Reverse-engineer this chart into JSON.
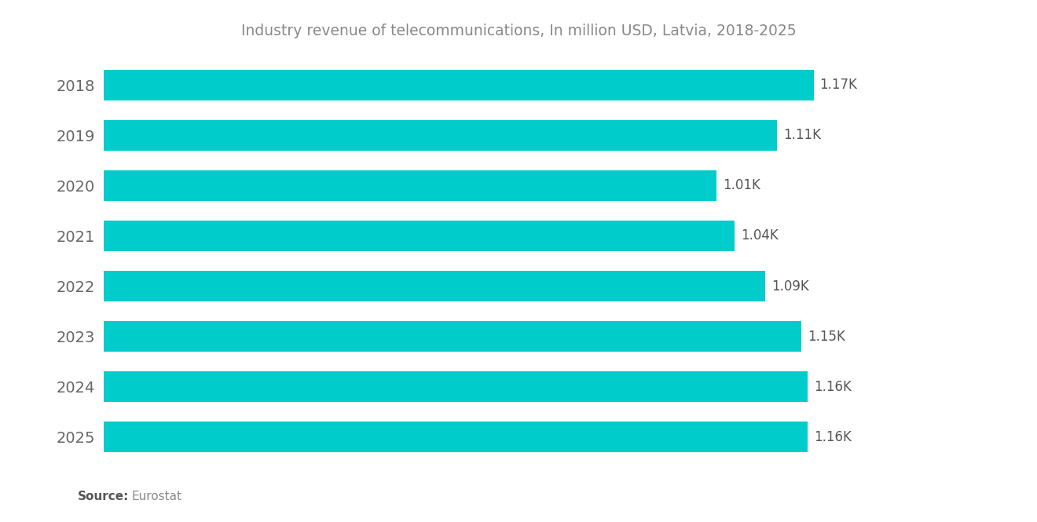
{
  "title": "Industry revenue of telecommunications, In million USD, Latvia, 2018-2025",
  "years": [
    "2018",
    "2019",
    "2020",
    "2021",
    "2022",
    "2023",
    "2024",
    "2025"
  ],
  "values": [
    1170,
    1110,
    1010,
    1040,
    1090,
    1150,
    1160,
    1160
  ],
  "labels": [
    "1.17K",
    "1.11K",
    "1.01K",
    "1.04K",
    "1.09K",
    "1.15K",
    "1.16K",
    "1.16K"
  ],
  "bar_color": "#00CCCC",
  "background_color": "#FFFFFF",
  "title_color": "#888888",
  "label_color": "#555555",
  "ytick_color": "#666666",
  "source_bold": "Source:",
  "source_text": "Eurostat",
  "xlim_max": 1350,
  "bar_height": 0.62
}
